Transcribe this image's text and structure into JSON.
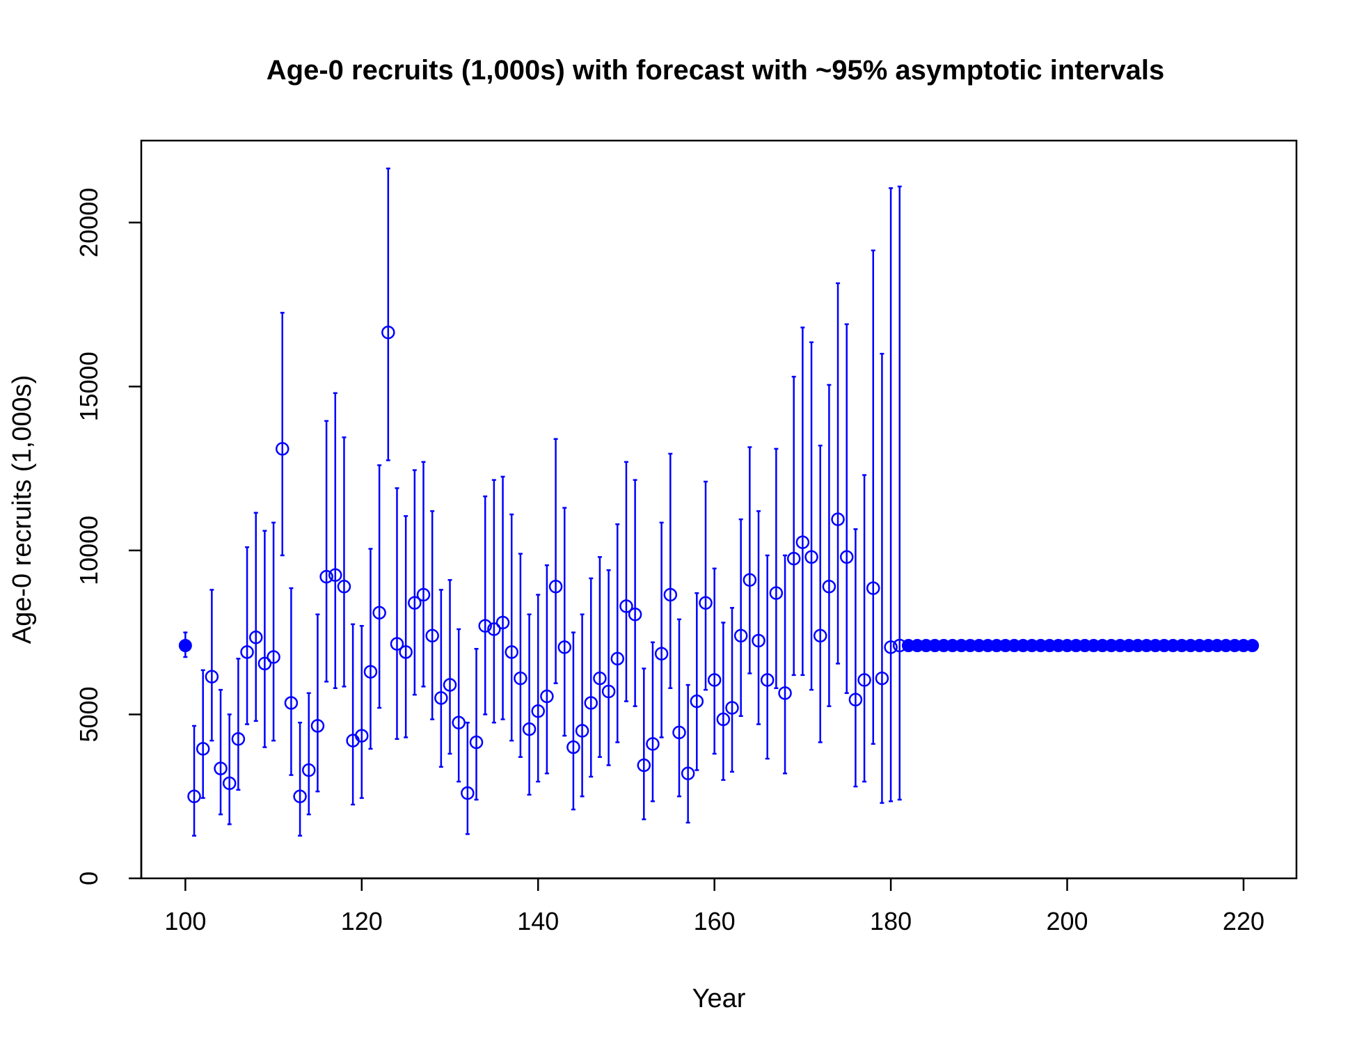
{
  "chart_data": {
    "type": "scatter",
    "title": "Age-0 recruits (1,000s) with forecast with ~95% asymptotic intervals",
    "xlabel": "Year",
    "ylabel": "Age-0 recruits (1,000s)",
    "xlim": [
      95,
      226
    ],
    "ylim": [
      0,
      22500
    ],
    "x_ticks": [
      100,
      120,
      140,
      160,
      180,
      200,
      220
    ],
    "y_ticks": [
      0,
      5000,
      10000,
      15000,
      20000
    ],
    "color": "#0000ff",
    "grid": false,
    "legend": "none",
    "virgin": {
      "x": 100,
      "y": 7100,
      "lo": 6750,
      "hi": 7500
    },
    "estimates": {
      "x": [
        101,
        102,
        103,
        104,
        105,
        106,
        107,
        108,
        109,
        110,
        111,
        112,
        113,
        114,
        115,
        116,
        117,
        118,
        119,
        120,
        121,
        122,
        123,
        124,
        125,
        126,
        127,
        128,
        129,
        130,
        131,
        132,
        133,
        134,
        135,
        136,
        137,
        138,
        139,
        140,
        141,
        142,
        143,
        144,
        145,
        146,
        147,
        148,
        149,
        150,
        151,
        152,
        153,
        154,
        155,
        156,
        157,
        158,
        159,
        160,
        161,
        162,
        163,
        164,
        165,
        166,
        167,
        168,
        169,
        170,
        171,
        172,
        173,
        174,
        175,
        176,
        177,
        178,
        179,
        180,
        181
      ],
      "y": [
        2500,
        3950,
        6150,
        3350,
        2900,
        4250,
        6900,
        7350,
        6550,
        6750,
        13100,
        5350,
        2500,
        3300,
        4650,
        9200,
        9250,
        8900,
        4200,
        4350,
        6300,
        8100,
        16650,
        7150,
        6900,
        8400,
        8650,
        7400,
        5500,
        5900,
        4750,
        2600,
        4150,
        7700,
        7600,
        7800,
        6900,
        6100,
        4550,
        5100,
        5550,
        8900,
        7050,
        4000,
        4500,
        5350,
        6100,
        5700,
        6700,
        8300,
        8050,
        3450,
        4100,
        6850,
        8650,
        4450,
        3200,
        5400,
        8400,
        6050,
        4850,
        5200,
        7400,
        9100,
        7250,
        6050,
        8700,
        5650,
        9750,
        10250,
        9800,
        7400,
        8900,
        10950,
        9800,
        5450,
        6050,
        8850,
        6100,
        7050,
        7100
      ],
      "lo": [
        1300,
        2450,
        4200,
        1950,
        1650,
        2700,
        4700,
        4800,
        4000,
        4200,
        9850,
        3150,
        1300,
        1950,
        2650,
        6000,
        5800,
        5850,
        2250,
        2450,
        3950,
        5200,
        12750,
        4250,
        4300,
        5600,
        5850,
        4850,
        3400,
        3800,
        2950,
        1350,
        2400,
        5000,
        4750,
        4850,
        4200,
        3700,
        2550,
        2950,
        3200,
        5950,
        4350,
        2100,
        2500,
        3100,
        3700,
        3450,
        4150,
        5400,
        5250,
        1800,
        2350,
        4300,
        5800,
        2500,
        1700,
        3300,
        5750,
        3800,
        3000,
        3250,
        4950,
        6250,
        4700,
        3650,
        5800,
        3200,
        6200,
        6200,
        5750,
        4150,
        5250,
        6550,
        5650,
        2800,
        2950,
        4100,
        2300,
        2350,
        2400
      ],
      "hi": [
        4650,
        6350,
        8800,
        5750,
        5000,
        6700,
        10100,
        11150,
        10600,
        10850,
        17250,
        8850,
        4750,
        5650,
        8050,
        13950,
        14800,
        13450,
        7750,
        7700,
        10050,
        12600,
        21650,
        11900,
        11050,
        12450,
        12700,
        11200,
        8800,
        9100,
        7600,
        4750,
        7000,
        11650,
        12150,
        12250,
        11100,
        9900,
        8050,
        8650,
        9550,
        13400,
        11300,
        7500,
        8050,
        9150,
        9800,
        9400,
        10800,
        12700,
        12150,
        6400,
        7200,
        10850,
        12950,
        7900,
        5900,
        8700,
        12100,
        9450,
        7800,
        8250,
        10950,
        13150,
        11200,
        9850,
        13100,
        9850,
        15300,
        16800,
        16350,
        13200,
        15050,
        18150,
        16900,
        10650,
        12300,
        19150,
        16000,
        21050,
        21100
      ]
    },
    "forecast": {
      "x_start": 182,
      "x_end": 221,
      "y": 7100
    }
  }
}
